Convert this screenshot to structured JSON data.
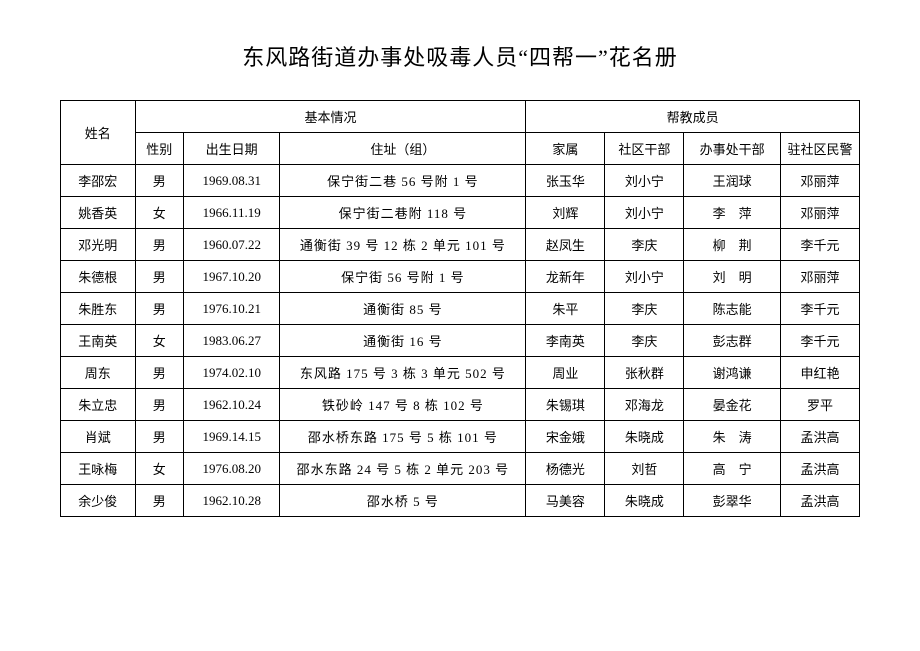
{
  "title": "东风路街道办事处吸毒人员“四帮一”花名册",
  "header": {
    "name": "姓名",
    "group_basic": "基本情况",
    "group_help": "帮教成员",
    "gender": "性别",
    "dob": "出生日期",
    "addr": "住址（组）",
    "family": "家属",
    "community": "社区干部",
    "office": "办事处干部",
    "police": "驻社区民警"
  },
  "rows": [
    {
      "name": "李邵宏",
      "gender": "男",
      "dob": "1969.08.31",
      "addr": "保宁街二巷 56 号附 1 号",
      "family": "张玉华",
      "community": "刘小宁",
      "office": "王润球",
      "police": "邓丽萍"
    },
    {
      "name": "姚香英",
      "gender": "女",
      "dob": "1966.11.19",
      "addr": "保宁街二巷附 118 号",
      "family": "刘辉",
      "community": "刘小宁",
      "office": "李　萍",
      "police": "邓丽萍"
    },
    {
      "name": "邓光明",
      "gender": "男",
      "dob": "1960.07.22",
      "addr": "通衡街 39 号 12 栋 2 单元 101 号",
      "family": "赵凤生",
      "community": "李庆",
      "office": "柳　荆",
      "police": "李千元"
    },
    {
      "name": "朱德根",
      "gender": "男",
      "dob": "1967.10.20",
      "addr": "保宁街 56 号附 1 号",
      "family": "龙新年",
      "community": "刘小宁",
      "office": "刘　明",
      "police": "邓丽萍"
    },
    {
      "name": "朱胜东",
      "gender": "男",
      "dob": "1976.10.21",
      "addr": "通衡街 85 号",
      "family": "朱平",
      "community": "李庆",
      "office": "陈志能",
      "police": "李千元"
    },
    {
      "name": "王南英",
      "gender": "女",
      "dob": "1983.06.27",
      "addr": "通衡街 16 号",
      "family": "李南英",
      "community": "李庆",
      "office": "彭志群",
      "police": "李千元"
    },
    {
      "name": "周东",
      "gender": "男",
      "dob": "1974.02.10",
      "addr": "东风路 175 号 3 栋 3 单元 502 号",
      "family": "周业",
      "community": "张秋群",
      "office": "谢鸿谦",
      "police": "申红艳"
    },
    {
      "name": "朱立忠",
      "gender": "男",
      "dob": "1962.10.24",
      "addr": "铁砂岭 147 号 8 栋 102 号",
      "family": "朱锡琪",
      "community": "邓海龙",
      "office": "晏金花",
      "police": "罗平"
    },
    {
      "name": "肖斌",
      "gender": "男",
      "dob": "1969.14.15",
      "addr": "邵水桥东路 175 号 5 栋 101 号",
      "family": "宋金娥",
      "community": "朱晓成",
      "office": "朱　涛",
      "police": "孟洪高"
    },
    {
      "name": "王咏梅",
      "gender": "女",
      "dob": "1976.08.20",
      "addr": "邵水东路 24 号 5 栋 2 单元 203 号",
      "family": "杨德光",
      "community": "刘哲",
      "office": "高　宁",
      "police": "孟洪高"
    },
    {
      "name": "余少俊",
      "gender": "男",
      "dob": "1962.10.28",
      "addr": "邵水桥 5 号",
      "family": "马美容",
      "community": "朱晓成",
      "office": "彭翠华",
      "police": "孟洪高"
    }
  ]
}
